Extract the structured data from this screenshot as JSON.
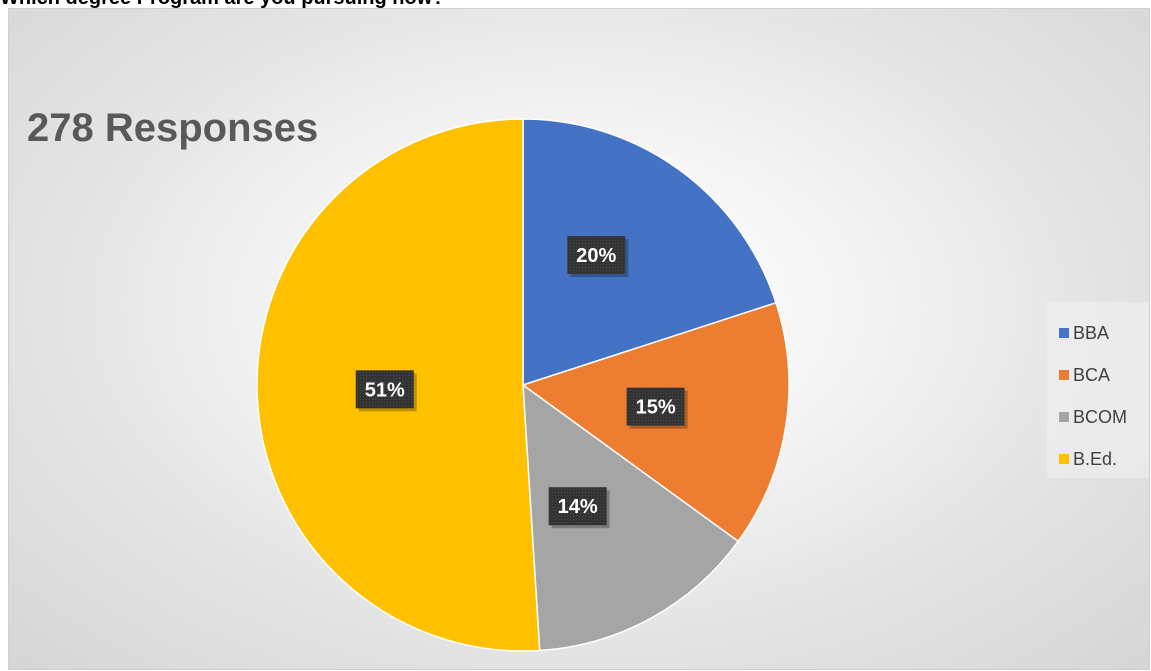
{
  "header": {
    "question": "Which degree Program are you pursuing now?"
  },
  "chart_data": {
    "type": "pie",
    "title": "278 Responses",
    "categories": [
      "BBA",
      "BCA",
      "BCOM",
      "B.Ed."
    ],
    "values": [
      20,
      15,
      14,
      51
    ],
    "labels": [
      "20%",
      "15%",
      "14%",
      "51%"
    ],
    "colors": [
      "#4472C4",
      "#ED7D31",
      "#A5A5A5",
      "#FFC000"
    ],
    "legend_position": "right"
  }
}
